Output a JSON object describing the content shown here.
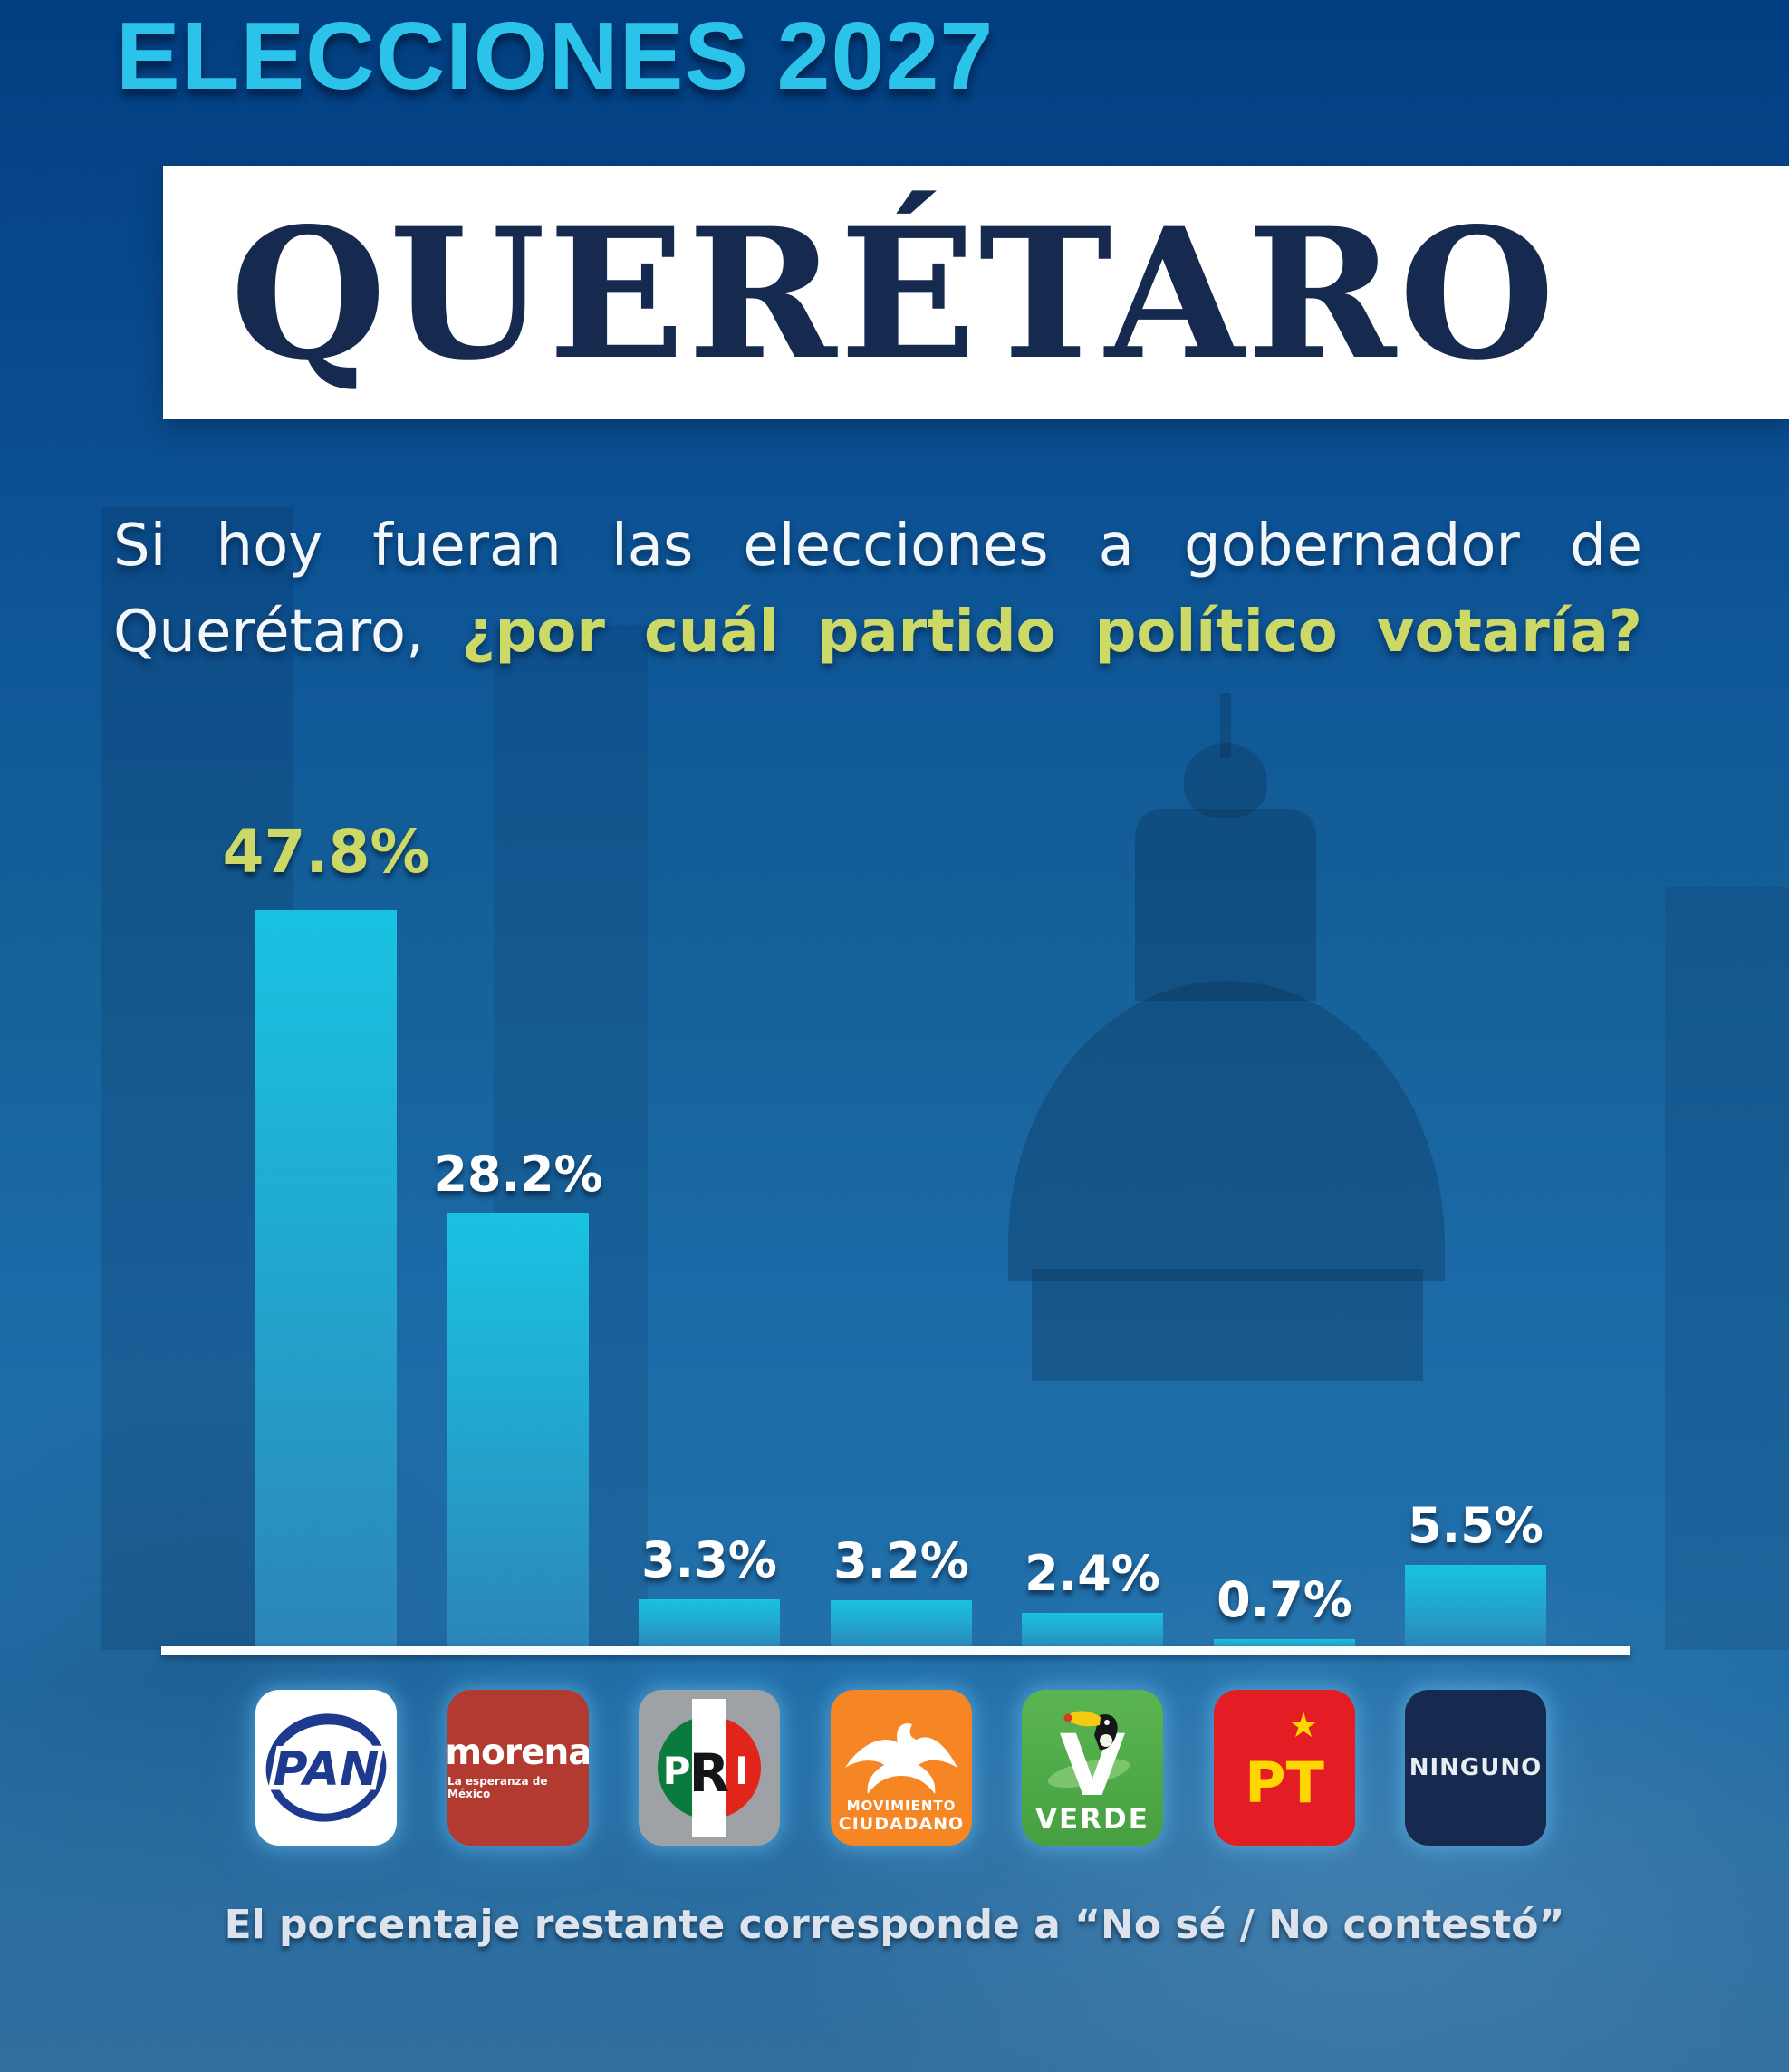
{
  "poster": {
    "eyebrow": "ELECCIONES 2027",
    "state": "QUERÉTARO",
    "question": {
      "line1": "Si hoy fueran las elecciones a gobernador de",
      "line2_regular": "Querétaro,",
      "line2_highlight": "¿por cuál partido político votaría?"
    },
    "footnote": "El porcentaje restante corresponde a “No sé / No contestó”",
    "colors": {
      "accent_cyan": "#2cc3ea",
      "highlight_yellow_green": "#ccd966",
      "banner_navy": "#16294e",
      "bar_gradient_top": "#19c2e2",
      "bar_gradient_bottom": "#2c85b8",
      "background_blue": "#1565a0"
    }
  },
  "chart_data": {
    "type": "bar",
    "title": "Si hoy fueran las elecciones a gobernador de Querétaro, ¿por cuál partido político votaría?",
    "categories": [
      "PAN",
      "MORENA",
      "PRI",
      "MOVIMIENTO CIUDADANO",
      "VERDE",
      "PT",
      "NINGUNO"
    ],
    "values": [
      47.8,
      28.2,
      3.3,
      3.2,
      2.4,
      0.7,
      5.5
    ],
    "value_labels": [
      "47.8%",
      "28.2%",
      "3.3%",
      "3.2%",
      "2.4%",
      "0.7%",
      "5.5%"
    ],
    "xlabel": "",
    "ylabel": "",
    "ylim": [
      0,
      50
    ],
    "grid": false,
    "legend_position": "none",
    "note": "El porcentaje restante corresponde a “No sé / No contestó”"
  },
  "logos": {
    "pan": {
      "label": "PAN",
      "bg": "#ffffff",
      "blue": "#1d3a8f"
    },
    "morena": {
      "label": "morena",
      "sublabel": "La esperanza de México",
      "bg": "#b33a30"
    },
    "pri": {
      "p": "P",
      "r": "R",
      "i": "I",
      "bg": "#9ea1a5",
      "stripes": [
        "#0b7a3d",
        "#ffffff",
        "#e1251b"
      ]
    },
    "mc": {
      "label_top": "MOVIMIENTO",
      "label_bottom": "CIUDADANO",
      "bg": "#f68524"
    },
    "verde": {
      "label": "VERDE",
      "letter": "V",
      "bg": "#54b04a"
    },
    "pt": {
      "label": "PT",
      "star": "★",
      "bg": "#e31d23",
      "yellow": "#ffd600"
    },
    "ninguno": {
      "label": "NINGUNO",
      "bg": "#152a4e"
    }
  }
}
